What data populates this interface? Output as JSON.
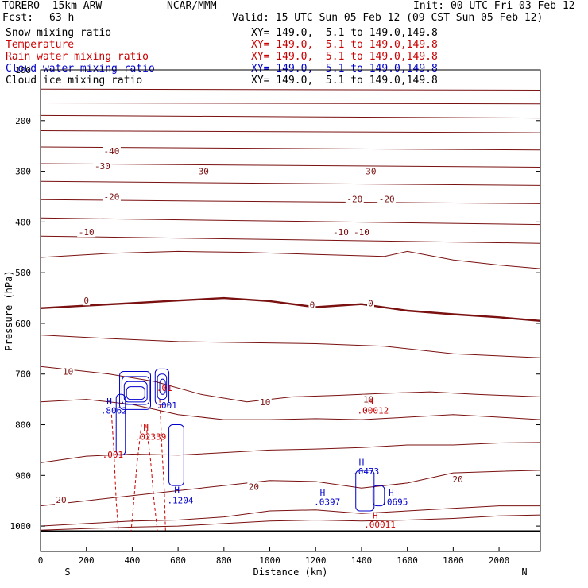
{
  "header": {
    "model": "TORERO  15km ARW",
    "org": "NCAR/MMM",
    "init": "Init: 00 UTC Fri 03 Feb 12",
    "fcst_label": "Fcst:",
    "fcst_value": "63 h",
    "valid": "Valid: 15 UTC Sun 05 Feb 12 (09 CST Sun 05 Feb 12)"
  },
  "legend": [
    {
      "label": "Snow mixing ratio",
      "xy": "XY= 149.0,  5.1 to 149.0,149.8",
      "label_color": "#000000",
      "xy_color": "#000000"
    },
    {
      "label": "Temperature",
      "xy": "XY= 149.0,  5.1 to 149.0,149.8",
      "label_color": "#cc0000",
      "xy_color": "#cc0000"
    },
    {
      "label": "Rain water mixing ratio",
      "xy": "XY= 149.0,  5.1 to 149.0,149.8",
      "label_color": "#cc0000",
      "xy_color": "#cc0000"
    },
    {
      "label": "Cloud water mixing ratio",
      "xy": "XY= 149.0,  5.1 to 149.0,149.8",
      "label_color": "#0000cc",
      "xy_color": "#0000cc"
    },
    {
      "label": "Cloud ice mixing ratio",
      "xy": "XY= 149.0,  5.1 to 149.0,149.8",
      "label_color": "#000000",
      "xy_color": "#000000"
    }
  ],
  "colors": {
    "temperature": "#7a1010",
    "cloud_water": "#0000cc",
    "rain": "#cc0000",
    "axis": "#000000"
  },
  "chart_data": {
    "type": "line",
    "xlabel": "Distance (km)",
    "ylabel": "Pressure (hPa)",
    "xlim": [
      0,
      2180
    ],
    "ylim": [
      1050,
      100
    ],
    "x_ticks": [
      0,
      200,
      400,
      600,
      800,
      1000,
      1200,
      1400,
      1600,
      1800,
      2000
    ],
    "y_ticks": [
      100,
      200,
      300,
      400,
      500,
      600,
      700,
      800,
      900,
      1000
    ],
    "x_end_labels": {
      "left": "S",
      "right": "N"
    },
    "temperature_lines": [
      {
        "x": [
          0,
          2180
        ],
        "y": [
          118,
          118
        ]
      },
      {
        "x": [
          0,
          2180
        ],
        "y": [
          138,
          140
        ]
      },
      {
        "x": [
          0,
          2180
        ],
        "y": [
          165,
          167
        ]
      },
      {
        "x": [
          0,
          2180
        ],
        "y": [
          190,
          195
        ]
      },
      {
        "x": [
          0,
          2180
        ],
        "y": [
          220,
          224
        ]
      },
      {
        "x": [
          0,
          2180
        ],
        "y": [
          252,
          258
        ]
      },
      {
        "x": [
          0,
          2180
        ],
        "y": [
          285,
          292
        ]
      },
      {
        "x": [
          0,
          2180
        ],
        "y": [
          320,
          328
        ]
      },
      {
        "x": [
          0,
          2180
        ],
        "y": [
          356,
          364
        ]
      },
      {
        "x": [
          0,
          2180
        ],
        "y": [
          392,
          405
        ]
      },
      {
        "x": [
          0,
          2180
        ],
        "y": [
          428,
          442
        ]
      },
      {
        "x": [
          0,
          300,
          600,
          900,
          1200,
          1500,
          1600,
          1800,
          2000,
          2180
        ],
        "y": [
          470,
          462,
          458,
          460,
          464,
          468,
          458,
          475,
          485,
          492
        ]
      },
      {
        "x": [
          0,
          200,
          400,
          600,
          800,
          1000,
          1200,
          1400,
          1600,
          1800,
          2000,
          2180
        ],
        "y": [
          570,
          565,
          560,
          555,
          550,
          556,
          568,
          562,
          575,
          582,
          588,
          595
        ]
      },
      {
        "x": [
          0,
          300,
          600,
          900,
          1200,
          1500,
          1800,
          2180
        ],
        "y": [
          623,
          630,
          636,
          638,
          640,
          645,
          660,
          668
        ]
      },
      {
        "x": [
          0,
          100,
          300,
          500,
          700,
          900,
          1100,
          1300,
          1500,
          1700,
          1900,
          2180
        ],
        "y": [
          685,
          690,
          700,
          715,
          740,
          755,
          745,
          742,
          738,
          735,
          740,
          745
        ]
      },
      {
        "x": [
          0,
          200,
          400,
          600,
          800,
          1000,
          1200,
          1400,
          1600,
          1800,
          2000,
          2180
        ],
        "y": [
          755,
          750,
          760,
          780,
          790,
          790,
          788,
          790,
          785,
          780,
          785,
          790
        ]
      },
      {
        "x": [
          0,
          200,
          400,
          600,
          800,
          1000,
          1200,
          1400,
          1600,
          1800,
          2000,
          2180
        ],
        "y": [
          875,
          862,
          858,
          860,
          855,
          850,
          848,
          845,
          840,
          840,
          836,
          835
        ]
      },
      {
        "x": [
          0,
          200,
          400,
          600,
          800,
          1000,
          1200,
          1400,
          1600,
          1800,
          2000,
          2180
        ],
        "y": [
          960,
          950,
          940,
          930,
          920,
          910,
          912,
          925,
          915,
          895,
          892,
          890
        ]
      },
      {
        "x": [
          0,
          200,
          400,
          600,
          800,
          1000,
          1200,
          1400,
          1600,
          1800,
          2000,
          2180
        ],
        "y": [
          1000,
          995,
          990,
          988,
          982,
          970,
          968,
          975,
          970,
          965,
          960,
          960
        ]
      },
      {
        "x": [
          0,
          200,
          400,
          600,
          800,
          1000,
          1200,
          1400,
          1600,
          1800,
          2000,
          2180
        ],
        "y": [
          1008,
          1005,
          1002,
          1000,
          995,
          990,
          988,
          990,
          988,
          985,
          980,
          978
        ]
      }
    ],
    "zero_isotherm_index": 12,
    "temperature_labels": [
      {
        "text": "-40",
        "x": 310,
        "y": 260
      },
      {
        "text": "-30",
        "x": 270,
        "y": 290
      },
      {
        "text": "-30",
        "x": 700,
        "y": 300
      },
      {
        "text": "-30",
        "x": 1430,
        "y": 300
      },
      {
        "text": "-20",
        "x": 310,
        "y": 350
      },
      {
        "text": "-20",
        "x": 1370,
        "y": 355
      },
      {
        "text": "-20",
        "x": 1510,
        "y": 355
      },
      {
        "text": "-10",
        "x": 200,
        "y": 420
      },
      {
        "text": "-10",
        "x": 1310,
        "y": 420
      },
      {
        "text": "-10",
        "x": 1400,
        "y": 420
      },
      {
        "text": "0",
        "x": 200,
        "y": 555
      },
      {
        "text": "0",
        "x": 1185,
        "y": 563
      },
      {
        "text": "0",
        "x": 1440,
        "y": 560
      },
      {
        "text": "10",
        "x": 120,
        "y": 695
      },
      {
        "text": "10",
        "x": 980,
        "y": 755
      },
      {
        "text": "10",
        "x": 1430,
        "y": 750
      },
      {
        "text": "20",
        "x": 930,
        "y": 922
      },
      {
        "text": "20",
        "x": 1820,
        "y": 907
      },
      {
        "text": "20",
        "x": 90,
        "y": 948
      }
    ],
    "cloud_water_boxes": [
      {
        "x": [
          345,
          480
        ],
        "y": [
          695,
          770
        ]
      },
      {
        "x": [
          355,
          475
        ],
        "y": [
          705,
          760
        ]
      },
      {
        "x": [
          365,
          465
        ],
        "y": [
          715,
          755
        ]
      },
      {
        "x": [
          375,
          455
        ],
        "y": [
          725,
          750
        ]
      },
      {
        "x": [
          330,
          370
        ],
        "y": [
          740,
          860
        ]
      },
      {
        "x": [
          500,
          560
        ],
        "y": [
          690,
          760
        ]
      },
      {
        "x": [
          510,
          550
        ],
        "y": [
          700,
          750
        ]
      },
      {
        "x": [
          520,
          545
        ],
        "y": [
          710,
          740
        ]
      },
      {
        "x": [
          560,
          625
        ],
        "y": [
          800,
          920
        ]
      },
      {
        "x": [
          1375,
          1455
        ],
        "y": [
          890,
          970
        ]
      },
      {
        "x": [
          1450,
          1500
        ],
        "y": [
          920,
          960
        ]
      }
    ],
    "rain_lines": [
      {
        "x": [
          310,
          320,
          330,
          340
        ],
        "y": [
          780,
          850,
          950,
          1010
        ]
      },
      {
        "x": [
          440,
          420,
          405,
          395
        ],
        "y": [
          800,
          880,
          960,
          1010
        ]
      },
      {
        "x": [
          460,
          480,
          495,
          510
        ],
        "y": [
          800,
          870,
          950,
          1010
        ]
      },
      {
        "x": [
          520,
          530,
          540,
          545
        ],
        "y": [
          750,
          850,
          930,
          1010
        ]
      }
    ],
    "extrema_labels": [
      {
        "text": "H",
        "x": 300,
        "y": 760,
        "color": "cloud_water"
      },
      {
        "text": ".8062",
        "x": 320,
        "y": 778,
        "color": "cloud_water"
      },
      {
        "text": ".001",
        "x": 315,
        "y": 865,
        "color": "rain"
      },
      {
        "text": "H",
        "x": 460,
        "y": 812,
        "color": "rain"
      },
      {
        "text": ".02339",
        "x": 480,
        "y": 830,
        "color": "rain"
      },
      {
        "text": ".01",
        "x": 540,
        "y": 733,
        "color": "rain"
      },
      {
        "text": ".001",
        "x": 550,
        "y": 768,
        "color": "cloud_water"
      },
      {
        "text": "H",
        "x": 595,
        "y": 935,
        "color": "cloud_water"
      },
      {
        "text": ".1204",
        "x": 610,
        "y": 955,
        "color": "cloud_water"
      },
      {
        "text": "H",
        "x": 1230,
        "y": 940,
        "color": "cloud_water"
      },
      {
        "text": ".0397",
        "x": 1250,
        "y": 958,
        "color": "cloud_water"
      },
      {
        "text": "H",
        "x": 1400,
        "y": 880,
        "color": "cloud_water"
      },
      {
        "text": ".0473",
        "x": 1420,
        "y": 898,
        "color": "cloud_water"
      },
      {
        "text": "H",
        "x": 1440,
        "y": 760,
        "color": "rain"
      },
      {
        "text": ".00012",
        "x": 1450,
        "y": 778,
        "color": "rain"
      },
      {
        "text": "H",
        "x": 1530,
        "y": 940,
        "color": "cloud_water"
      },
      {
        "text": ".0695",
        "x": 1545,
        "y": 958,
        "color": "cloud_water"
      },
      {
        "text": "H",
        "x": 1460,
        "y": 985,
        "color": "rain"
      },
      {
        "text": ".00011",
        "x": 1480,
        "y": 1003,
        "color": "rain"
      }
    ],
    "surface_line": {
      "x": [
        0,
        2180
      ],
      "y": [
        1010,
        1010
      ]
    }
  }
}
